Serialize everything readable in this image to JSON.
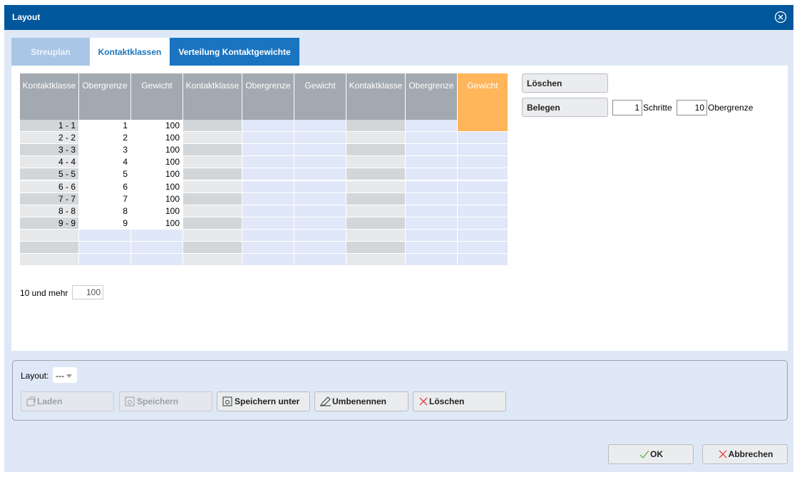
{
  "dialog": {
    "title": "Layout"
  },
  "tabs": [
    "Streuplan",
    "Kontaktklassen",
    "Verteilung Kontaktgewichte"
  ],
  "table": {
    "headers": [
      "Kontaktklasse",
      "Obergrenze",
      "Gewicht",
      "Kontaktklasse",
      "Obergrenze",
      "Gewicht",
      "Kontaktklasse",
      "Obergrenze",
      "Gewicht"
    ],
    "rows": [
      [
        "1 - 1",
        1,
        100
      ],
      [
        "2 - 2",
        2,
        100
      ],
      [
        "3 - 3",
        3,
        100
      ],
      [
        "4 - 4",
        4,
        100
      ],
      [
        "5 - 5",
        5,
        100
      ],
      [
        "6 - 6",
        6,
        100
      ],
      [
        "7 - 7",
        7,
        100
      ],
      [
        "8 - 8",
        8,
        100
      ],
      [
        "9 - 9",
        9,
        100
      ]
    ]
  },
  "side": {
    "clear_button": "Löschen",
    "fill_button": "Belegen",
    "steps_value": 1,
    "steps_label": "Schritte",
    "limit_value": 10,
    "limit_label": "Obergrenze"
  },
  "overflow": {
    "label": "10 und mehr",
    "value": 100
  },
  "layout_group": {
    "label": "Layout:",
    "select_value": "---",
    "buttons": [
      "Laden",
      "Speichern",
      "Speichern unter",
      "Umbenennen",
      "Löschen"
    ]
  },
  "footer": {
    "ok": "OK",
    "cancel": "Abbrechen"
  }
}
